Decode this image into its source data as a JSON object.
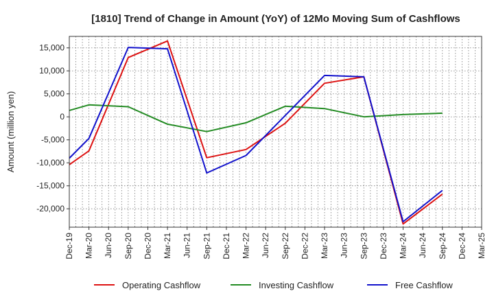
{
  "chart_data": {
    "type": "line",
    "title": "[1810]  Trend of Change in Amount (YoY) of 12Mo Moving Sum of Cashflows",
    "xlabel": "",
    "ylabel": "Amount (million yen)",
    "ylim": [
      -24000,
      17500
    ],
    "yticks": [
      15000,
      10000,
      5000,
      0,
      -5000,
      -10000,
      -15000,
      -20000
    ],
    "ytick_labels": [
      "15,000",
      "10,000",
      "5,000",
      "0",
      "-5,000",
      "-10,000",
      "-15,000",
      "-20,000"
    ],
    "categories": [
      "Dec-19",
      "Mar-20",
      "Jun-20",
      "Sep-20",
      "Dec-20",
      "Mar-21",
      "Jun-21",
      "Sep-21",
      "Dec-21",
      "Mar-22",
      "Jun-22",
      "Sep-22",
      "Dec-22",
      "Mar-23",
      "Jun-23",
      "Sep-23",
      "Dec-23",
      "Mar-24",
      "Jun-24",
      "Sep-24",
      "Dec-24",
      "Mar-25"
    ],
    "grid": true,
    "legend_position": "bottom",
    "series": [
      {
        "name": "Operating Cashflow",
        "color": "#dd1111",
        "points": [
          [
            0,
            -10400
          ],
          [
            1,
            -7400
          ],
          [
            3,
            12900
          ],
          [
            5,
            16500
          ],
          [
            7,
            -8900
          ],
          [
            9,
            -7100
          ],
          [
            11,
            -1400
          ],
          [
            13,
            7300
          ],
          [
            15,
            8700
          ],
          [
            17,
            -23300
          ],
          [
            19,
            -16800
          ]
        ]
      },
      {
        "name": "Investing Cashflow",
        "color": "#228b22",
        "points": [
          [
            0,
            1400
          ],
          [
            1,
            2600
          ],
          [
            3,
            2200
          ],
          [
            5,
            -1600
          ],
          [
            7,
            -3200
          ],
          [
            9,
            -1300
          ],
          [
            11,
            2300
          ],
          [
            13,
            1800
          ],
          [
            15,
            0
          ],
          [
            17,
            500
          ],
          [
            19,
            800
          ]
        ]
      },
      {
        "name": "Free Cashflow",
        "color": "#1111cc",
        "points": [
          [
            0,
            -9000
          ],
          [
            1,
            -4700
          ],
          [
            3,
            15100
          ],
          [
            5,
            14800
          ],
          [
            7,
            -12200
          ],
          [
            9,
            -8400
          ],
          [
            11,
            300
          ],
          [
            13,
            9000
          ],
          [
            15,
            8700
          ],
          [
            17,
            -22800
          ],
          [
            19,
            -16000
          ]
        ]
      }
    ]
  }
}
